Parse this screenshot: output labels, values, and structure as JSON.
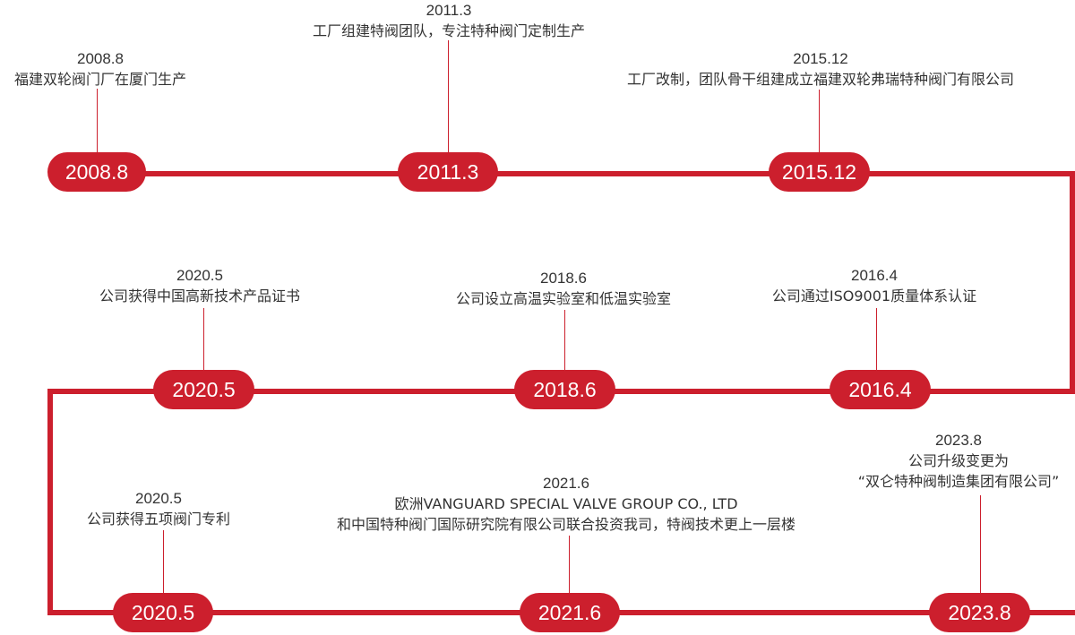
{
  "colors": {
    "accent": "#cc1f2d",
    "text": "#333333",
    "background": "#ffffff"
  },
  "rows": [
    {
      "events": [
        {
          "date": "2008.8",
          "lines": [
            "福建双轮阀门厂在厦门生产"
          ]
        },
        {
          "date": "2011.3",
          "lines": [
            "工厂组建特阀团队，专注特种阀门定制生产"
          ]
        },
        {
          "date": "2015.12",
          "lines": [
            "工厂改制，团队骨干组建成立福建双轮弗瑞特种阀门有限公司"
          ]
        }
      ]
    },
    {
      "events": [
        {
          "date": "2020.5",
          "lines": [
            "公司获得中国高新技术产品证书"
          ]
        },
        {
          "date": "2018.6",
          "lines": [
            "公司设立高温实验室和低温实验室"
          ]
        },
        {
          "date": "2016.4",
          "lines": [
            "公司通过ISO9001质量体系认证"
          ]
        }
      ]
    },
    {
      "events": [
        {
          "date": "2020.5",
          "lines": [
            "公司获得五项阀门专利"
          ]
        },
        {
          "date": "2021.6",
          "lines": [
            "欧洲VANGUARD SPECIAL VALVE GROUP CO., LTD",
            "和中国特种阀门国际研究院有限公司联合投资我司，特阀技术更上一层楼"
          ]
        },
        {
          "date": "2023.8",
          "lines": [
            "公司升级变更为",
            "“双仑特种阀制造集团有限公司”"
          ]
        }
      ]
    }
  ]
}
